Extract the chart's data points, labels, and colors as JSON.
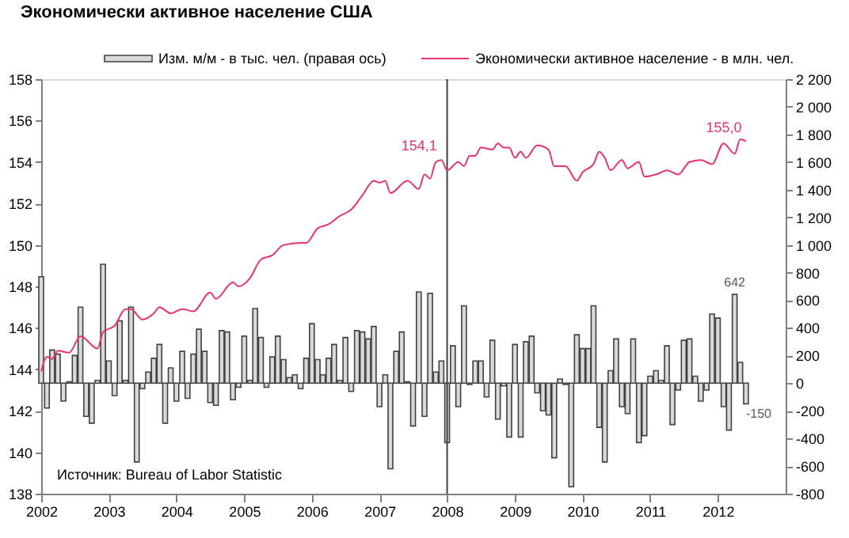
{
  "chart_data": {
    "type": "bar",
    "title": "Экономически активное население США",
    "series": [
      {
        "name": "Изм. м/м - в тыс. чел. (правая ось)",
        "axis": "y2",
        "color": "#d9d9d9",
        "x": [
          "2002-01",
          "2002-02",
          "2002-03",
          "2002-04",
          "2002-05",
          "2002-06",
          "2002-07",
          "2002-08",
          "2002-09",
          "2002-10",
          "2002-11",
          "2002-12",
          "2003-01",
          "2003-02",
          "2003-03",
          "2003-04",
          "2003-05",
          "2003-06",
          "2003-07",
          "2003-08",
          "2003-09",
          "2003-10",
          "2003-11",
          "2003-12",
          "2004-01",
          "2004-02",
          "2004-03",
          "2004-04",
          "2004-05",
          "2004-06",
          "2004-07",
          "2004-08",
          "2004-09",
          "2004-10",
          "2004-11",
          "2004-12",
          "2005-01",
          "2005-02",
          "2005-03",
          "2005-04",
          "2005-05",
          "2005-06",
          "2005-07",
          "2005-08",
          "2005-09",
          "2005-10",
          "2005-11",
          "2005-12",
          "2006-01",
          "2006-02",
          "2006-03",
          "2006-04",
          "2006-05",
          "2006-06",
          "2006-07",
          "2006-08",
          "2006-09",
          "2006-10",
          "2006-11",
          "2006-12",
          "2007-01",
          "2007-02",
          "2007-03",
          "2007-04",
          "2007-05",
          "2007-06",
          "2007-07",
          "2007-08",
          "2007-09",
          "2007-10",
          "2007-11",
          "2007-12",
          "2008-01",
          "2008-02",
          "2008-03",
          "2008-04",
          "2008-05",
          "2008-06",
          "2008-07",
          "2008-08",
          "2008-09",
          "2008-10",
          "2008-11",
          "2008-12",
          "2009-01",
          "2009-02",
          "2009-03",
          "2009-04",
          "2009-05",
          "2009-06",
          "2009-07",
          "2009-08",
          "2009-09",
          "2009-10",
          "2009-11",
          "2009-12",
          "2010-01",
          "2010-02",
          "2010-03",
          "2010-04",
          "2010-05",
          "2010-06",
          "2010-07",
          "2010-08",
          "2010-09",
          "2010-10",
          "2010-11",
          "2010-12",
          "2011-01",
          "2011-02",
          "2011-03",
          "2011-04",
          "2011-05",
          "2011-06",
          "2011-07",
          "2011-08",
          "2011-09",
          "2011-10",
          "2011-11",
          "2011-12",
          "2012-01",
          "2012-02",
          "2012-03",
          "2012-04",
          "2012-05",
          "2012-06"
        ],
        "values": [
          770,
          -180,
          240,
          210,
          -130,
          10,
          200,
          550,
          -240,
          -290,
          20,
          860,
          160,
          -90,
          450,
          20,
          550,
          -570,
          -40,
          80,
          180,
          280,
          -290,
          110,
          -130,
          230,
          -110,
          210,
          390,
          230,
          -140,
          -160,
          380,
          370,
          -120,
          -30,
          340,
          20,
          540,
          330,
          -30,
          190,
          340,
          170,
          40,
          60,
          -40,
          180,
          430,
          170,
          60,
          180,
          280,
          20,
          330,
          -60,
          380,
          370,
          320,
          410,
          -170,
          60,
          -620,
          230,
          370,
          10,
          -310,
          660,
          -240,
          650,
          80,
          160,
          -430,
          270,
          -170,
          560,
          -10,
          160,
          160,
          -100,
          310,
          -260,
          -20,
          -390,
          280,
          -390,
          300,
          340,
          -70,
          -200,
          -230,
          -540,
          30,
          -10,
          -750,
          350,
          250,
          250,
          560,
          -320,
          -570,
          90,
          320,
          -170,
          -220,
          320,
          -430,
          -380,
          50,
          90,
          20,
          270,
          -300,
          -50,
          310,
          320,
          50,
          -130,
          -50,
          500,
          470,
          -170,
          -340,
          642,
          150,
          -150
        ],
        "value_labels": [
          null,
          null,
          null,
          null,
          null,
          null,
          null,
          null,
          null,
          null,
          null,
          null,
          null,
          null,
          null,
          null,
          null,
          null,
          null,
          null,
          null,
          null,
          null,
          null,
          null,
          null,
          null,
          null,
          null,
          null,
          null,
          null,
          null,
          null,
          null,
          null,
          null,
          null,
          null,
          null,
          null,
          null,
          null,
          null,
          null,
          null,
          null,
          null,
          null,
          null,
          null,
          null,
          null,
          null,
          null,
          null,
          null,
          null,
          null,
          null,
          null,
          null,
          null,
          null,
          null,
          null,
          null,
          null,
          null,
          null,
          null,
          null,
          null,
          null,
          null,
          null,
          null,
          null,
          null,
          null,
          null,
          null,
          null,
          null,
          null,
          null,
          null,
          null,
          null,
          null,
          null,
          null,
          null,
          null,
          null,
          null,
          null,
          null,
          null,
          null,
          null,
          null,
          null,
          null,
          null,
          null,
          null,
          null,
          null,
          null,
          null,
          null,
          null,
          null,
          null,
          null,
          null,
          null,
          null,
          null,
          null,
          null,
          null,
          "642",
          null,
          "-150"
        ]
      },
      {
        "name": "Экономически активное население - в млн. чел.",
        "type": "line",
        "color": "#e8336e",
        "x": [
          "2002-01",
          "2002-02",
          "2002-03",
          "2002-04",
          "2002-06",
          "2002-08",
          "2002-11",
          "2002-12",
          "2003-02",
          "2003-04",
          "2003-05",
          "2003-07",
          "2003-09",
          "2003-10",
          "2003-12",
          "2004-02",
          "2004-04",
          "2004-07",
          "2004-08",
          "2004-11",
          "2004-12",
          "2005-02",
          "2005-04",
          "2005-06",
          "2005-08",
          "2005-11",
          "2005-12",
          "2006-02",
          "2006-04",
          "2006-06",
          "2006-08",
          "2006-10",
          "2006-12",
          "2007-01",
          "2007-02",
          "2007-03",
          "2007-06",
          "2007-08",
          "2007-09",
          "2007-10",
          "2007-11",
          "2007-12",
          "2008-01",
          "2008-03",
          "2008-04",
          "2008-05",
          "2008-06",
          "2008-07",
          "2008-09",
          "2008-10",
          "2008-11",
          "2008-12",
          "2009-01",
          "2009-02",
          "2009-03",
          "2009-05",
          "2009-07",
          "2009-08",
          "2009-10",
          "2009-12",
          "2010-01",
          "2010-03",
          "2010-04",
          "2010-05",
          "2010-06",
          "2010-08",
          "2010-09",
          "2010-11",
          "2010-12",
          "2011-02",
          "2011-03",
          "2011-04",
          "2011-06",
          "2011-08",
          "2011-10",
          "2011-12",
          "2012-02",
          "2012-04",
          "2012-05",
          "2012-06"
        ],
        "values": [
          143.9,
          144.6,
          144.5,
          144.9,
          144.8,
          145.6,
          145.0,
          145.8,
          146.1,
          146.9,
          146.9,
          146.4,
          146.7,
          147.0,
          146.7,
          146.9,
          146.8,
          147.7,
          147.4,
          148.2,
          148.0,
          148.4,
          149.3,
          149.5,
          150.0,
          150.1,
          150.1,
          150.8,
          151.0,
          151.4,
          151.7,
          152.4,
          153.1,
          153.0,
          153.1,
          152.5,
          153.1,
          152.7,
          153.4,
          153.2,
          154.0,
          154.1,
          153.6,
          154.0,
          153.8,
          154.3,
          154.3,
          154.7,
          154.6,
          154.9,
          154.7,
          154.7,
          154.2,
          154.5,
          154.2,
          154.8,
          154.6,
          153.8,
          153.8,
          153.1,
          153.5,
          153.9,
          154.5,
          154.2,
          153.6,
          154.1,
          153.7,
          154.0,
          153.3,
          153.4,
          153.5,
          153.6,
          153.4,
          154.0,
          154.1,
          153.9,
          154.9,
          154.4,
          155.1,
          155.0
        ],
        "value_labels": [
          null,
          null,
          null,
          null,
          null,
          null,
          null,
          null,
          null,
          null,
          null,
          null,
          null,
          null,
          null,
          null,
          null,
          null,
          null,
          null,
          null,
          null,
          null,
          null,
          null,
          null,
          null,
          null,
          null,
          null,
          null,
          null,
          null,
          null,
          null,
          null,
          null,
          null,
          null,
          null,
          null,
          "154,1",
          null,
          null,
          null,
          null,
          null,
          null,
          null,
          null,
          null,
          null,
          null,
          null,
          null,
          null,
          null,
          null,
          null,
          null,
          null,
          null,
          null,
          null,
          null,
          null,
          null,
          null,
          null,
          null,
          null,
          null,
          null,
          null,
          null,
          null,
          null,
          null,
          null,
          "155,0"
        ]
      }
    ],
    "xlim": [
      "2002-01",
      "2013-01"
    ],
    "xticks": [
      "2002",
      "2003",
      "2004",
      "2005",
      "2006",
      "2007",
      "2008",
      "2009",
      "2010",
      "2011",
      "2012"
    ],
    "ylim": [
      138,
      158
    ],
    "yticks": [
      138,
      140,
      142,
      144,
      146,
      148,
      150,
      152,
      154,
      156,
      158
    ],
    "y2lim": [
      -800,
      2200
    ],
    "y2ticks": [
      {
        "value": -800,
        "label": "-800"
      },
      {
        "value": -600,
        "label": "-600"
      },
      {
        "value": -400,
        "label": "-400"
      },
      {
        "value": -200,
        "label": "-200"
      },
      0,
      200,
      400,
      600,
      800,
      {
        "value": 1000,
        "label": "1 000"
      },
      {
        "value": 1200,
        "label": "1 200"
      },
      {
        "value": 1400,
        "label": "1 400"
      },
      {
        "value": 1600,
        "label": "1 600"
      },
      {
        "value": 1800,
        "label": "1 800"
      },
      {
        "value": 2000,
        "label": "2 000"
      },
      {
        "value": 2200,
        "label": "2 200"
      }
    ],
    "ref_lines": [
      {
        "axis": "x",
        "value": "2008-01",
        "color": "#404040"
      }
    ],
    "annotations": [
      "Источник: Bureau of Labor Statistic"
    ],
    "legend": "top",
    "grid": false
  }
}
